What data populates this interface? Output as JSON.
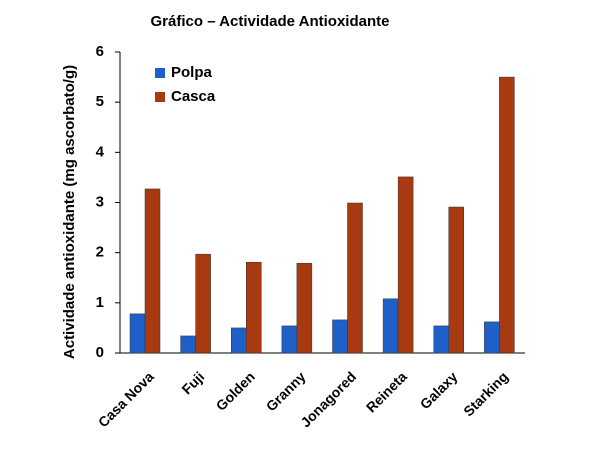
{
  "chart_data": {
    "type": "bar",
    "title": "Gráfico – Actividade Antioxidante",
    "y_label": "Actividade antioxidante (mg ascorbato/g)",
    "categories": [
      "Casa Nova",
      "Fuji",
      "Golden",
      "Granny",
      "Jonagored",
      "Reineta",
      "Galaxy",
      "Starking"
    ],
    "series": [
      {
        "name": "Polpa",
        "color": "#1f5fc8",
        "values": [
          0.78,
          0.34,
          0.5,
          0.54,
          0.66,
          1.08,
          0.54,
          0.62
        ]
      },
      {
        "name": "Casca",
        "color": "#a83a12",
        "values": [
          3.27,
          1.97,
          1.81,
          1.79,
          2.99,
          3.51,
          2.91,
          5.5
        ]
      }
    ],
    "ylim": [
      0,
      6
    ],
    "yticks": [
      0,
      1,
      2,
      3,
      4,
      5,
      6
    ],
    "grid": false,
    "legend": "top-left"
  }
}
